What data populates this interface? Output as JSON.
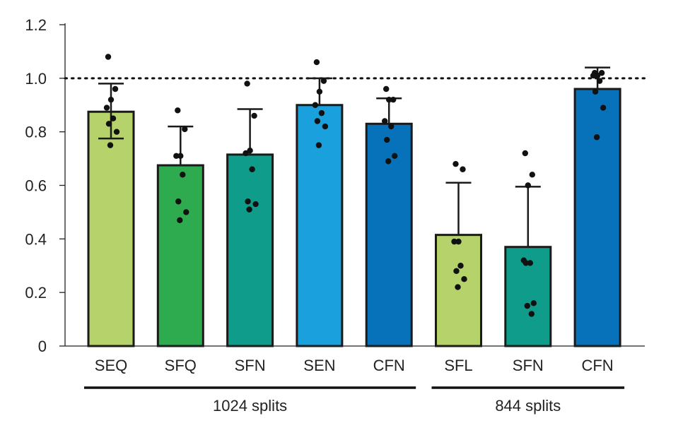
{
  "chart_data": {
    "type": "bar",
    "categories": [
      "SEQ",
      "SFQ",
      "SFN",
      "SEN",
      "CFN",
      "SFL",
      "SFN",
      "CFN"
    ],
    "values": [
      0.875,
      0.675,
      0.715,
      0.9,
      0.83,
      0.415,
      0.37,
      0.96
    ],
    "error_upper": [
      0.98,
      0.82,
      0.885,
      1.0,
      0.925,
      0.61,
      0.595,
      1.04
    ],
    "error_lower": [
      0.775,
      null,
      null,
      null,
      null,
      null,
      null,
      null
    ],
    "points": [
      [
        1.08,
        0.96,
        0.92,
        0.89,
        0.85,
        0.83,
        0.8,
        0.75
      ],
      [
        0.88,
        0.81,
        0.71,
        0.71,
        0.64,
        0.54,
        0.5,
        0.47
      ],
      [
        0.98,
        0.86,
        0.73,
        0.72,
        0.66,
        0.54,
        0.53,
        0.51
      ],
      [
        1.06,
        0.99,
        0.95,
        0.9,
        0.87,
        0.84,
        0.82,
        0.75
      ],
      [
        0.96,
        0.92,
        0.92,
        0.84,
        0.82,
        0.77,
        0.71,
        0.69
      ],
      [
        0.68,
        0.66,
        0.39,
        0.39,
        0.3,
        0.28,
        0.25,
        0.22
      ],
      [
        0.72,
        0.64,
        0.6,
        0.32,
        0.31,
        0.31,
        0.16,
        0.15,
        0.12
      ],
      [
        1.02,
        1.02,
        1.01,
        1.01,
        0.99,
        0.95,
        0.89,
        0.78
      ]
    ],
    "colors": [
      "#b5d36a",
      "#2eaa4f",
      "#0f9c8a",
      "#1aa0dc",
      "#0772b9",
      "#b5d36a",
      "#0f9c8a",
      "#0772b9"
    ],
    "ylim": [
      0,
      1.2
    ],
    "yticks": [
      "0",
      "0.2",
      "0.4",
      "0.6",
      "0.8",
      "1.0",
      "1.2"
    ],
    "yticks_values": [
      0,
      0.2,
      0.4,
      0.6,
      0.8,
      1.0,
      1.2
    ],
    "reference_line": 1.0,
    "groups": [
      {
        "label": "1024 splits",
        "from": 0,
        "to": 4
      },
      {
        "label": "844 splits",
        "from": 5,
        "to": 7
      }
    ],
    "title": "",
    "xlabel": "",
    "ylabel": "",
    "grid": false
  }
}
